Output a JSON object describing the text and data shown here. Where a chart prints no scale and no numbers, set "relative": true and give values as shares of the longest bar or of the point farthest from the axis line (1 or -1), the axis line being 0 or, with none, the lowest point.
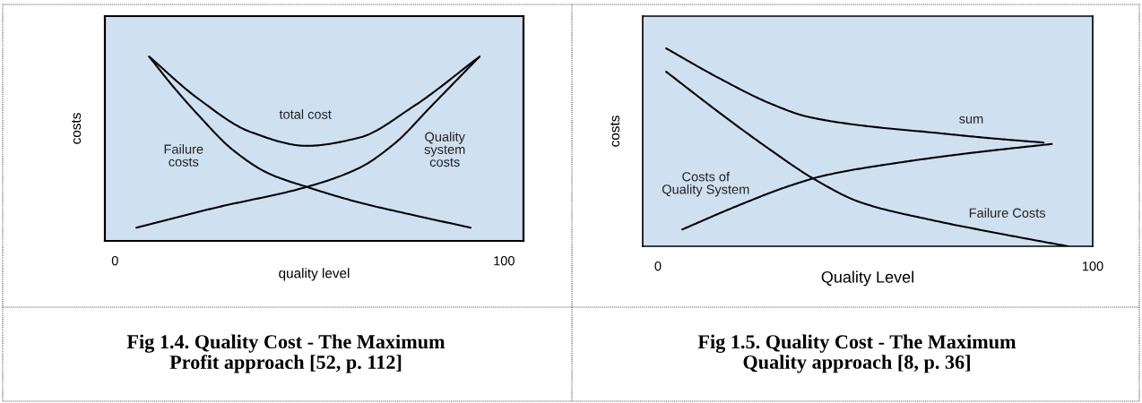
{
  "chart_data": [
    {
      "type": "line",
      "ylabel": "costs",
      "xlabel": "quality level",
      "relative": true,
      "xlim": [
        -2.6,
        105
      ],
      "xticks": [
        0,
        100
      ],
      "series": [
        {
          "name": "total cost",
          "color": "#000000",
          "x": [
            8.8,
            21.2,
            35.0,
            49.3,
            62.7,
            76.5,
            93.7
          ],
          "values": [
            1.0,
            0.775,
            0.59,
            0.516,
            0.56,
            0.727,
            1.0
          ]
        },
        {
          "name": "Failure\ncosts",
          "color": "#000000",
          "x": [
            8.8,
            14.7,
            21.2,
            30.4,
            39.6,
            49.3,
            62.7,
            76.5,
            91.4
          ],
          "values": [
            1.0,
            0.844,
            0.688,
            0.492,
            0.365,
            0.293,
            0.209,
            0.141,
            0.072
          ]
        },
        {
          "name": "Quality\nsystem\ncosts",
          "color": "#000000",
          "x": [
            5.5,
            25.8,
            49.3,
            62.7,
            72.0,
            81.1,
            93.7
          ],
          "values": [
            0.072,
            0.18,
            0.293,
            0.395,
            0.531,
            0.727,
            1.0
          ]
        }
      ],
      "annotations": [
        "Fig 1.4. Quality Cost - The Maximum\nProfit approach [52, p. 112]"
      ]
    },
    {
      "type": "line",
      "ylabel": "costs",
      "xlabel": "Quality Level",
      "relative": true,
      "xlim": [
        -3.5,
        100
      ],
      "xticks": [
        0,
        100
      ],
      "series": [
        {
          "name": "sum",
          "color": "#000000",
          "x": [
            1.9,
            13.6,
            26.0,
            34.2,
            46.6,
            63.1,
            75.5,
            88.7
          ],
          "values": [
            1.0,
            0.855,
            0.72,
            0.656,
            0.611,
            0.575,
            0.548,
            0.524
          ]
        },
        {
          "name": "Costs of\nQuality System",
          "color": "#000000",
          "x": [
            5.6,
            17.7,
            30.1,
            38.4,
            54.9,
            71.4,
            90.6
          ],
          "values": [
            0.085,
            0.199,
            0.304,
            0.358,
            0.421,
            0.47,
            0.517
          ]
        },
        {
          "name": "Failure Costs",
          "color": "#000000",
          "x": [
            1.9,
            13.6,
            26.0,
            35.9,
            46.6,
            63.1,
            79.6,
            94.3
          ],
          "values": [
            0.882,
            0.684,
            0.485,
            0.34,
            0.222,
            0.132,
            0.06,
            0.0
          ]
        }
      ],
      "annotations": [
        "Fig 1.5. Quality Cost - The Maximum\nQuality approach [8, p. 36]"
      ]
    }
  ]
}
